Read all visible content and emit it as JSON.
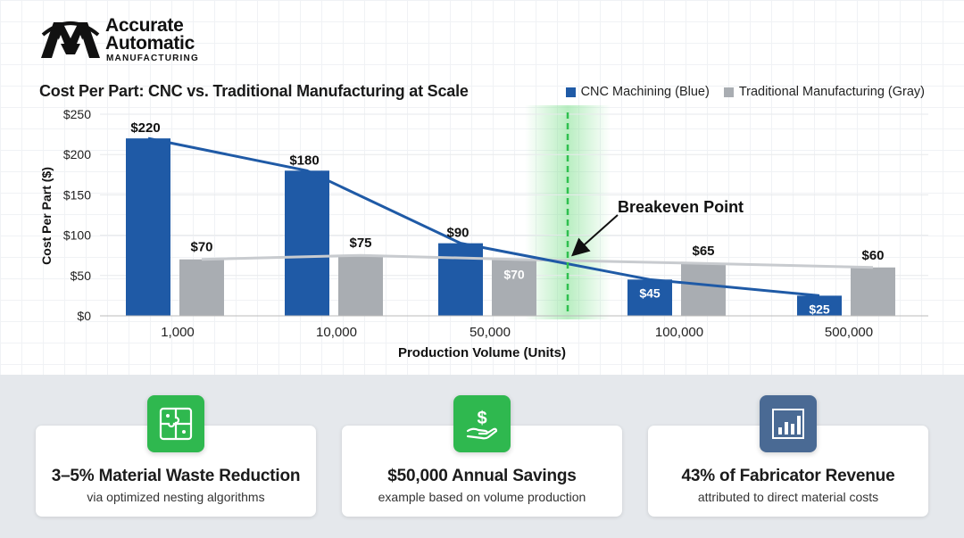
{
  "brand": {
    "line1": "Accurate",
    "line2": "Automatic",
    "line3": "MANUFACTURING"
  },
  "chart_data": {
    "type": "bar",
    "title": "Cost Per Part: CNC vs. Traditional Manufacturing at Scale",
    "xlabel": "Production Volume (Units)",
    "ylabel": "Cost Per Part ($)",
    "ylim": [
      0,
      250
    ],
    "yticks": [
      "$0",
      "$50",
      "$100",
      "$150",
      "$200",
      "$250"
    ],
    "categories": [
      "1,000",
      "10,000",
      "50,000",
      "100,000",
      "500,000"
    ],
    "series": [
      {
        "name": "CNC Machining (Blue)",
        "color": "#1f5aa6",
        "values": [
          220,
          180,
          90,
          45,
          25
        ],
        "labels": [
          "$220",
          "$180",
          "$90",
          "$45",
          "$25"
        ]
      },
      {
        "name": "Traditional Manufacturing (Gray)",
        "color": "#a9adb2",
        "values": [
          70,
          75,
          70,
          65,
          60
        ],
        "labels": [
          "$70",
          "$75",
          "$70",
          "$65",
          "$60"
        ]
      }
    ],
    "trendlines": [
      {
        "series": "CNC Machining (Blue)",
        "color": "#1f5aa6"
      },
      {
        "series": "Traditional Manufacturing (Gray)",
        "color": "#c8cbcf"
      }
    ],
    "annotation": {
      "text": "Breakeven Point",
      "marker_color": "#2fbf4f"
    }
  },
  "cards": [
    {
      "title": "3–5% Material Waste Reduction",
      "subtitle": "via optimized nesting algorithms",
      "icon": "puzzle-icon",
      "icon_color": "#2fb84f"
    },
    {
      "title": "$50,000 Annual Savings",
      "subtitle": "example based on volume production",
      "icon": "dollar-hand-icon",
      "icon_color": "#2fb84f"
    },
    {
      "title": "43% of Fabricator Revenue",
      "subtitle": "attributed to direct material costs",
      "icon": "bar-chart-icon",
      "icon_color": "#4a6a94"
    }
  ]
}
